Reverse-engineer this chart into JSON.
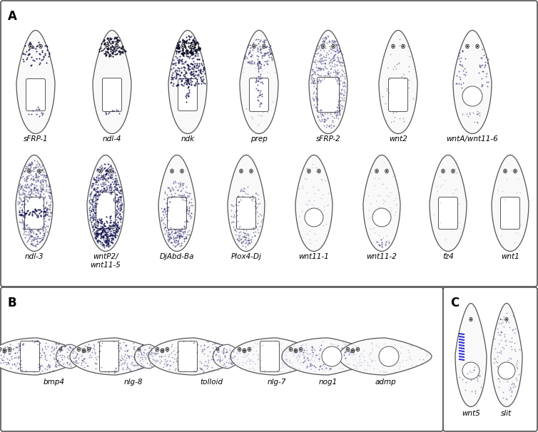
{
  "panel_A_row1_labels": [
    "sFRP-1",
    "ndl-4",
    "ndk",
    "prep",
    "sFRP-2",
    "wnt2",
    "wntA/wnt11-6"
  ],
  "panel_A_row2_labels": [
    "ndl-3",
    "wntP2/\nwnt11-5",
    "DjAbd-Ba",
    "Plox4-Dj",
    "wnt11-1",
    "wnt11-2",
    "fz4",
    "wnt1"
  ],
  "panel_B_labels": [
    "bmp4",
    "nlg-8",
    "tolloid",
    "nlg-7",
    "nog1",
    "admp"
  ],
  "panel_C_labels": [
    "wnt5",
    "slit"
  ],
  "dot_color": "#2a2a6e",
  "dot_color_light": "#8888cc",
  "dot_color_dark": "#0a0a45",
  "outline_color": "#555555",
  "bg_color": "#ffffff"
}
